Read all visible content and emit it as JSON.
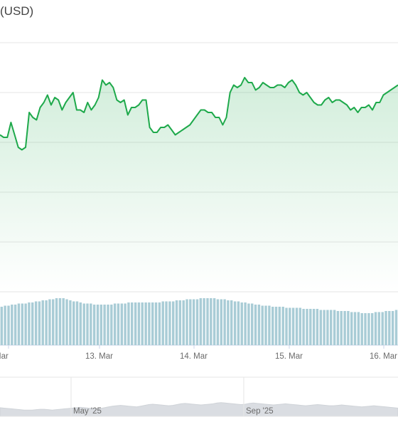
{
  "title": "(USD)",
  "colors": {
    "line": "#1ea94b",
    "fill": "#1ea94b",
    "volume": "#a9ccd6",
    "navigator": "#dadde2",
    "grid": "#e6e6e6"
  },
  "chart_data": [
    {
      "type": "line",
      "title": "(USD)",
      "x_ticks": [
        "Mar",
        "13. Mar",
        "14. Mar",
        "15. Mar",
        "16. Mar"
      ],
      "grid": true,
      "values": [
        63,
        62,
        62,
        68,
        63,
        58,
        57,
        58,
        72,
        70,
        69,
        74,
        76,
        79,
        75,
        78,
        77,
        73,
        76,
        78,
        80,
        73,
        73,
        72,
        76,
        73,
        75,
        78,
        85,
        83,
        84,
        82,
        77,
        76,
        77,
        71,
        74,
        74,
        75,
        77,
        77,
        66,
        64,
        64,
        66,
        66,
        67,
        65,
        63,
        64,
        65,
        66,
        67,
        69,
        71,
        73,
        73,
        72,
        72,
        70,
        70,
        67,
        70,
        80,
        83,
        82,
        83,
        86,
        84,
        84,
        81,
        82,
        84,
        83,
        82,
        82,
        83,
        83,
        82,
        84,
        85,
        83,
        80,
        79,
        80,
        78,
        76,
        75,
        75,
        77,
        78,
        76,
        77,
        77,
        76,
        75,
        73,
        74,
        72,
        74,
        74,
        75,
        73,
        76,
        76,
        79,
        80,
        81,
        82,
        83
      ]
    },
    {
      "type": "bar",
      "title": "",
      "values": [
        36,
        37,
        37,
        38,
        38,
        39,
        39,
        39,
        40,
        40,
        41,
        41,
        42,
        42,
        43,
        43,
        44,
        44,
        44,
        43,
        42,
        41,
        41,
        40,
        39,
        39,
        39,
        38,
        38,
        38,
        38,
        38,
        38,
        39,
        39,
        39,
        39,
        40,
        40,
        40,
        40,
        40,
        40,
        40,
        40,
        40,
        40,
        41,
        41,
        41,
        41,
        42,
        42,
        42,
        43,
        43,
        43,
        43,
        44,
        44,
        44,
        44,
        44,
        43,
        43,
        43,
        42,
        42,
        41,
        41,
        40,
        40,
        39,
        39,
        38,
        38,
        37,
        37,
        37,
        36,
        36,
        36,
        36,
        35,
        35,
        35,
        35,
        35,
        34,
        34,
        34,
        34,
        34,
        33,
        33,
        33,
        33,
        33,
        32,
        32,
        32,
        32,
        31,
        31,
        31,
        30,
        30,
        30,
        30,
        31,
        31,
        31,
        32,
        32,
        32,
        33
      ]
    },
    {
      "type": "area",
      "title": "",
      "x_ticks": [
        "May '25",
        "Sep '25"
      ],
      "values": [
        22,
        21,
        20,
        19,
        18,
        17,
        16,
        16,
        16,
        17,
        18,
        18,
        17,
        16,
        17,
        18,
        19,
        20,
        21,
        22,
        23,
        22,
        21,
        20,
        19,
        20,
        22,
        24,
        26,
        27,
        28,
        27,
        26,
        25,
        24,
        26,
        28,
        30,
        31,
        30,
        29,
        28,
        27,
        28,
        30,
        32,
        33,
        32,
        31,
        30,
        29,
        30,
        31,
        32,
        34,
        35,
        34,
        33,
        32,
        31,
        30,
        31,
        33,
        34,
        33,
        32,
        31,
        30,
        29,
        30,
        31,
        32,
        31,
        30,
        29,
        28,
        27,
        28,
        29,
        30,
        29,
        28,
        27,
        27,
        28,
        29,
        28,
        27,
        26,
        25,
        24,
        25,
        26,
        27,
        26,
        25,
        24,
        23,
        22,
        21
      ]
    }
  ]
}
